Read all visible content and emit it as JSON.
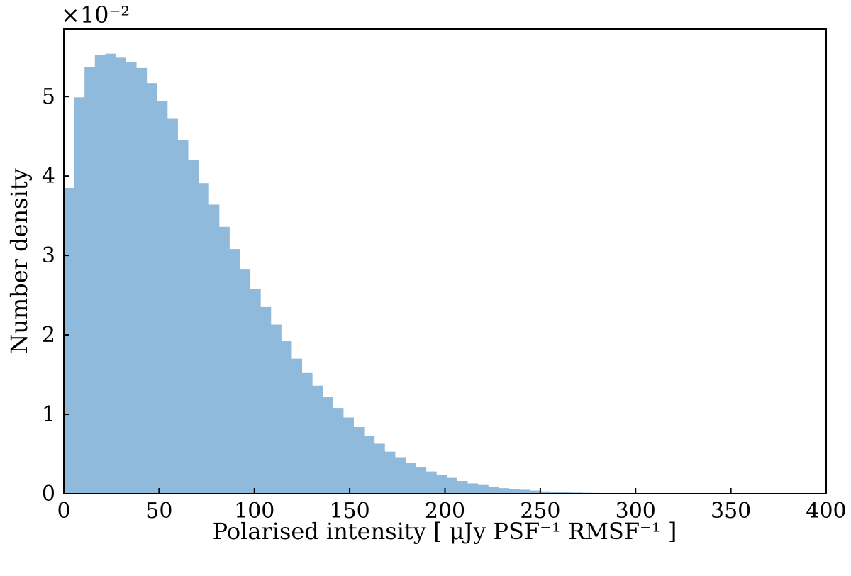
{
  "chart_data": {
    "type": "bar",
    "subtype": "histogram",
    "xlabel": "Polarised intensity [ μJy PSF⁻¹ RMSF⁻¹ ]",
    "ylabel": "Number density",
    "scale_factor": "×10⁻²",
    "xlim": [
      0,
      400
    ],
    "ylim": [
      0,
      5.85
    ],
    "x_ticks": [
      0,
      50,
      100,
      150,
      200,
      250,
      300,
      350,
      400
    ],
    "x_tick_labels": [
      "0",
      "50",
      "100",
      "150",
      "200",
      "250",
      "300",
      "350",
      "400"
    ],
    "y_ticks": [
      0,
      1,
      2,
      3,
      4,
      5
    ],
    "y_tick_labels": [
      "0",
      "1",
      "2",
      "3",
      "4",
      "5"
    ],
    "grid": false,
    "bar_color": "#8fbadb",
    "bin_width": 5.43,
    "bins_start": 0,
    "values": [
      3.85,
      4.99,
      5.37,
      5.52,
      5.54,
      5.49,
      5.43,
      5.36,
      5.17,
      4.94,
      4.72,
      4.45,
      4.2,
      3.91,
      3.64,
      3.36,
      3.08,
      2.83,
      2.58,
      2.35,
      2.13,
      1.92,
      1.7,
      1.52,
      1.36,
      1.22,
      1.08,
      0.96,
      0.84,
      0.73,
      0.63,
      0.53,
      0.46,
      0.39,
      0.33,
      0.28,
      0.24,
      0.2,
      0.16,
      0.13,
      0.11,
      0.09,
      0.07,
      0.06,
      0.05,
      0.04,
      0.03,
      0.025,
      0.02,
      0.015,
      0.012,
      0.01,
      0.008,
      0.006,
      0.005,
      0.004,
      0.003,
      0.002,
      0.002,
      0.001
    ]
  }
}
